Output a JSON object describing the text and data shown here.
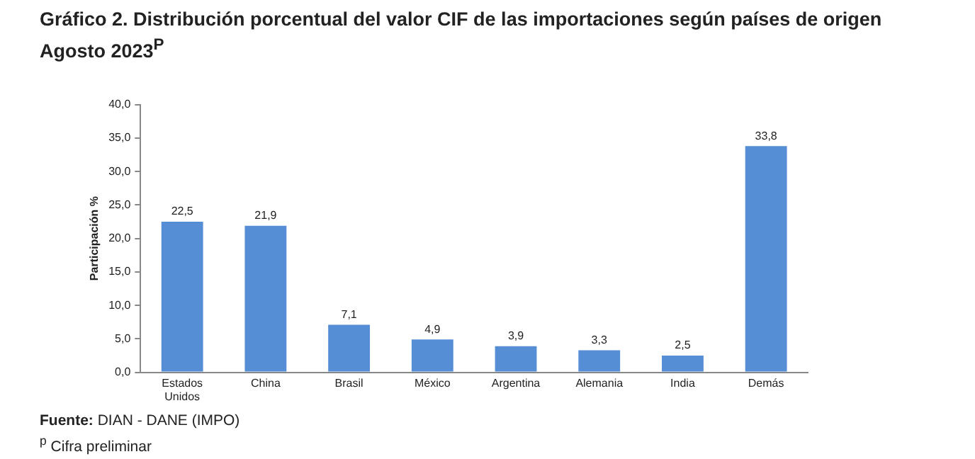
{
  "chart_data": {
    "type": "bar",
    "title": "Gráfico 2. Distribución porcentual del valor CIF de las importaciones según países de origen",
    "subtitle": "Agosto 2023$^{P}$",
    "ylabel": "Participación %",
    "categories": [
      "Estados Unidos",
      "China",
      "Brasil",
      "México",
      "Argentina",
      "Alemania",
      "India",
      "Demás"
    ],
    "values": [
      22.5,
      21.9,
      7.1,
      4.9,
      3.9,
      3.3,
      2.5,
      33.8
    ],
    "value_labels": [
      "22,5",
      "21,9",
      "7,1",
      "4,9",
      "3,9",
      "3,3",
      "2,5",
      "33,8"
    ],
    "color": "#558ed5",
    "ylim": [
      0,
      40
    ],
    "yticks": [
      {
        "value": 0,
        "label": "0,0"
      },
      {
        "value": 5,
        "label": "5,0"
      },
      {
        "value": 10,
        "label": "10,0"
      },
      {
        "value": 15,
        "label": "15,0"
      },
      {
        "value": 20,
        "label": "20,0"
      },
      {
        "value": 25,
        "label": "25,0"
      },
      {
        "value": 30,
        "label": "30,0"
      },
      {
        "value": 35,
        "label": "35,0"
      },
      {
        "value": 40,
        "label": "40,0"
      }
    ],
    "grid": false,
    "legend": false,
    "annotations": [
      "Fuente: DIAN - DANE (IMPO)",
      "$^{p}$ Cifra preliminar"
    ]
  }
}
